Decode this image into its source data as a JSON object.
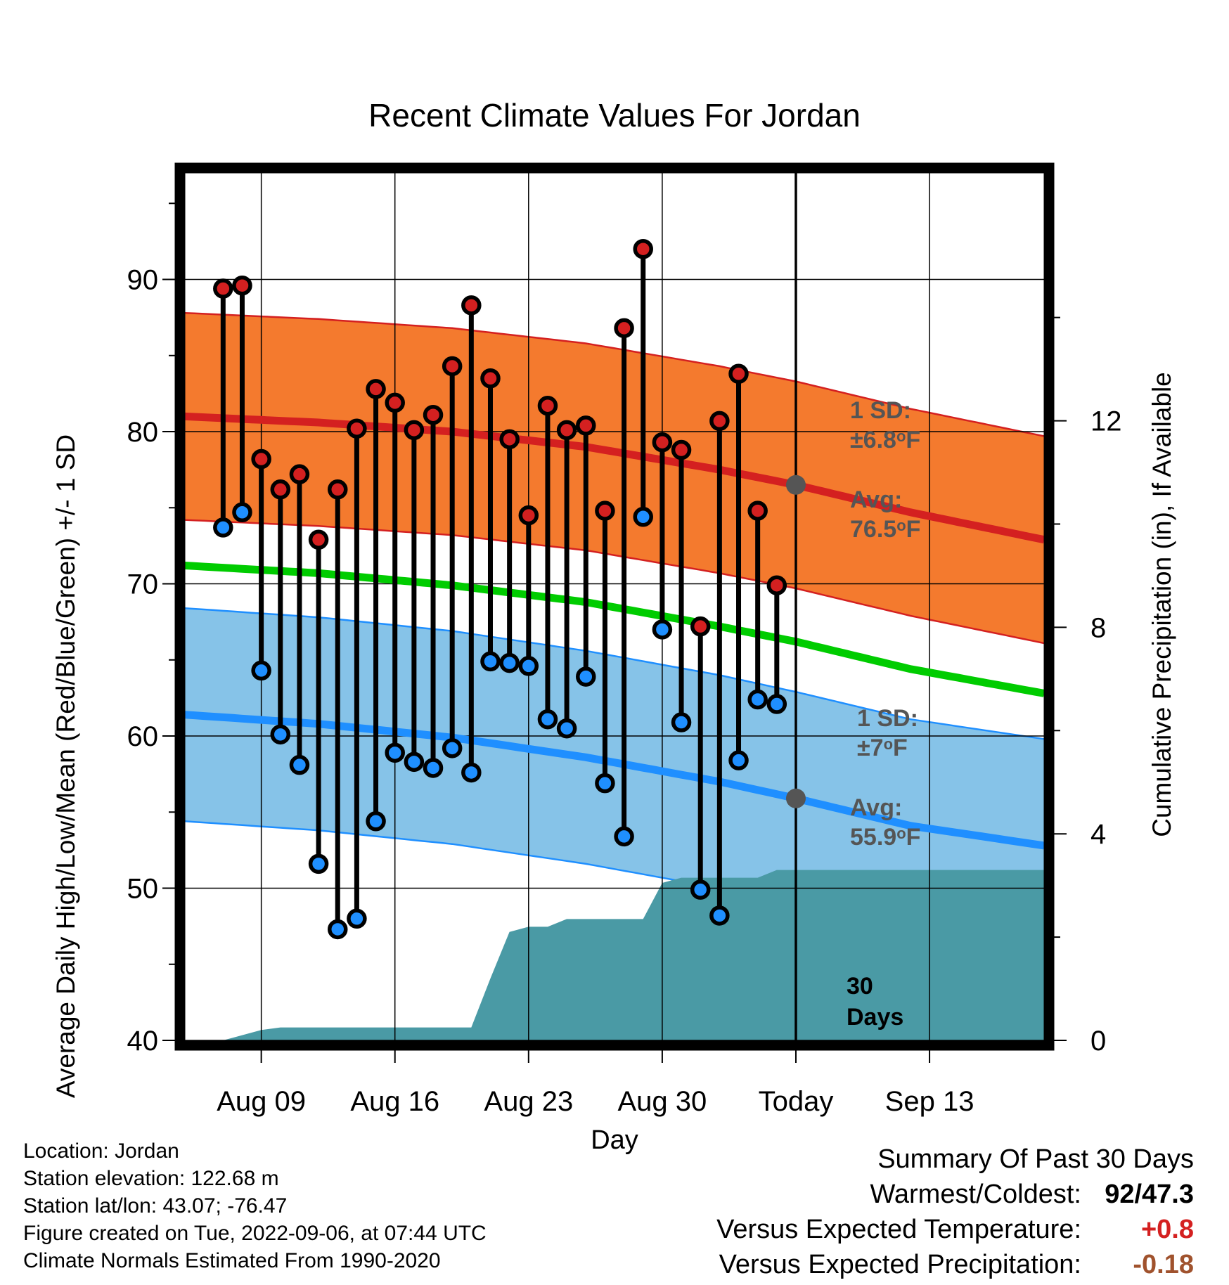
{
  "chart_data": {
    "type": "line",
    "title": "Recent Climate Values For Jordan",
    "xlabel": "Day",
    "ylabel": "Average Daily High/Low/Mean (Red/Blue/Green) +/- 1 SD",
    "y2label": "Cumulative Precipitation (in), If Available",
    "ylim": [
      40,
      97
    ],
    "y2lim": [
      0,
      16.8
    ],
    "xlim": [
      "2022-08-05",
      "2022-09-19"
    ],
    "x_ticks": [
      {
        "date": "2022-08-09",
        "label": "Aug 09"
      },
      {
        "date": "2022-08-16",
        "label": "Aug 16"
      },
      {
        "date": "2022-08-23",
        "label": "Aug 23"
      },
      {
        "date": "2022-08-30",
        "label": "Aug 30"
      },
      {
        "date": "2022-09-06",
        "label": "Today"
      },
      {
        "date": "2022-09-13",
        "label": "Sep 13"
      }
    ],
    "y_ticks": [
      40,
      50,
      60,
      70,
      80,
      90
    ],
    "y2_ticks": [
      0,
      4,
      8,
      12
    ],
    "grid": true,
    "today": "2022-09-06",
    "period_label": "30 Days",
    "colors": {
      "high": "#d42020",
      "low": "#1f8fff",
      "mean": "#00cc00",
      "high_band": "#f47a2e",
      "low_band": "#86c3e8",
      "precip": "#4a9aa5"
    },
    "daily": [
      {
        "date": "2022-08-07",
        "high": 89.4,
        "low": 73.7
      },
      {
        "date": "2022-08-08",
        "high": 89.6,
        "low": 74.7
      },
      {
        "date": "2022-08-09",
        "high": 78.2,
        "low": 64.3
      },
      {
        "date": "2022-08-10",
        "high": 76.2,
        "low": 60.1
      },
      {
        "date": "2022-08-11",
        "high": 77.2,
        "low": 58.1
      },
      {
        "date": "2022-08-12",
        "high": 72.9,
        "low": 51.6
      },
      {
        "date": "2022-08-13",
        "high": 76.2,
        "low": 47.3
      },
      {
        "date": "2022-08-14",
        "high": 80.2,
        "low": 48.0
      },
      {
        "date": "2022-08-15",
        "high": 82.8,
        "low": 54.4
      },
      {
        "date": "2022-08-16",
        "high": 81.9,
        "low": 58.9
      },
      {
        "date": "2022-08-17",
        "high": 80.1,
        "low": 58.3
      },
      {
        "date": "2022-08-18",
        "high": 81.1,
        "low": 57.9
      },
      {
        "date": "2022-08-19",
        "high": 84.3,
        "low": 59.2
      },
      {
        "date": "2022-08-20",
        "high": 88.3,
        "low": 57.6
      },
      {
        "date": "2022-08-21",
        "high": 83.5,
        "low": 64.9
      },
      {
        "date": "2022-08-22",
        "high": 79.5,
        "low": 64.8
      },
      {
        "date": "2022-08-23",
        "high": 74.5,
        "low": 64.6
      },
      {
        "date": "2022-08-24",
        "high": 81.7,
        "low": 61.1
      },
      {
        "date": "2022-08-25",
        "high": 80.1,
        "low": 60.5
      },
      {
        "date": "2022-08-26",
        "high": 80.4,
        "low": 63.9
      },
      {
        "date": "2022-08-27",
        "high": 74.8,
        "low": 56.9
      },
      {
        "date": "2022-08-28",
        "high": 86.8,
        "low": 53.4
      },
      {
        "date": "2022-08-29",
        "high": 92.0,
        "low": 74.4
      },
      {
        "date": "2022-08-30",
        "high": 79.3,
        "low": 67.0
      },
      {
        "date": "2022-08-31",
        "high": 78.8,
        "low": 60.9
      },
      {
        "date": "2022-09-01",
        "high": 67.2,
        "low": 49.9
      },
      {
        "date": "2022-09-02",
        "high": 80.7,
        "low": 48.2
      },
      {
        "date": "2022-09-03",
        "high": 83.8,
        "low": 58.4
      },
      {
        "date": "2022-09-04",
        "high": 74.8,
        "low": 62.4
      },
      {
        "date": "2022-09-05",
        "high": 69.9,
        "low": 62.1
      }
    ],
    "normals": [
      {
        "date": "2022-08-05",
        "high": 81.0,
        "low": 61.4,
        "mean": 71.2
      },
      {
        "date": "2022-08-12",
        "high": 80.6,
        "low": 60.8,
        "mean": 70.7
      },
      {
        "date": "2022-08-19",
        "high": 80.0,
        "low": 59.9,
        "mean": 69.9
      },
      {
        "date": "2022-08-26",
        "high": 79.0,
        "low": 58.6,
        "mean": 68.8
      },
      {
        "date": "2022-09-02",
        "high": 77.5,
        "low": 57.0,
        "mean": 67.2
      },
      {
        "date": "2022-09-06",
        "high": 76.5,
        "low": 55.9,
        "mean": 66.2
      },
      {
        "date": "2022-09-12",
        "high": 74.7,
        "low": 54.1,
        "mean": 64.4
      },
      {
        "date": "2022-09-19",
        "high": 72.9,
        "low": 52.8,
        "mean": 62.8
      }
    ],
    "high_sd": 6.8,
    "low_sd": 7.0,
    "precip": [
      {
        "date": "2022-08-05",
        "value": 0.0
      },
      {
        "date": "2022-08-07",
        "value": 0.0
      },
      {
        "date": "2022-08-09",
        "value": 0.2
      },
      {
        "date": "2022-08-10",
        "value": 0.25
      },
      {
        "date": "2022-08-15",
        "value": 0.25
      },
      {
        "date": "2022-08-20",
        "value": 0.25
      },
      {
        "date": "2022-08-21",
        "value": 1.2
      },
      {
        "date": "2022-08-22",
        "value": 2.1
      },
      {
        "date": "2022-08-23",
        "value": 2.2
      },
      {
        "date": "2022-08-24",
        "value": 2.2
      },
      {
        "date": "2022-08-25",
        "value": 2.35
      },
      {
        "date": "2022-08-29",
        "value": 2.35
      },
      {
        "date": "2022-08-30",
        "value": 3.05
      },
      {
        "date": "2022-08-31",
        "value": 3.15
      },
      {
        "date": "2022-09-04",
        "value": 3.15
      },
      {
        "date": "2022-09-05",
        "value": 3.3
      },
      {
        "date": "2022-09-19",
        "value": 3.3
      }
    ],
    "annotations": {
      "high_sd": {
        "line1": "1 SD:",
        "line2_prefix": "±6.8",
        "line2_suffix": "F"
      },
      "high_avg": {
        "line1": "Avg:",
        "line2_prefix": "76.5",
        "line2_suffix": "F"
      },
      "low_sd": {
        "line1": "1 SD:",
        "line2_prefix": "±7",
        "line2_suffix": "F"
      },
      "low_avg": {
        "line1": "Avg:",
        "line2_prefix": "55.9",
        "line2_suffix": "F"
      },
      "degree_mark": "o",
      "days_line1": "30",
      "days_line2": "Days"
    }
  },
  "meta": {
    "location": "Location: Jordan",
    "elevation": "Station elevation: 122.68 m",
    "latlon": "Station lat/lon: 43.07; -76.47",
    "created": "Figure created on Tue, 2022-09-06, at 07:44 UTC",
    "normals": "Climate Normals Estimated From 1990-2020"
  },
  "summary": {
    "heading": "Summary Of Past 30 Days",
    "warmest_coldest_label": "Warmest/Coldest:",
    "warmest_coldest_value": "92/47.3",
    "temp_label": "Versus Expected Temperature:",
    "temp_value": "+0.8",
    "temp_color": "#d42020",
    "precip_label": "Versus Expected Precipitation:",
    "precip_value": "-0.18",
    "precip_color": "#a0522d"
  }
}
